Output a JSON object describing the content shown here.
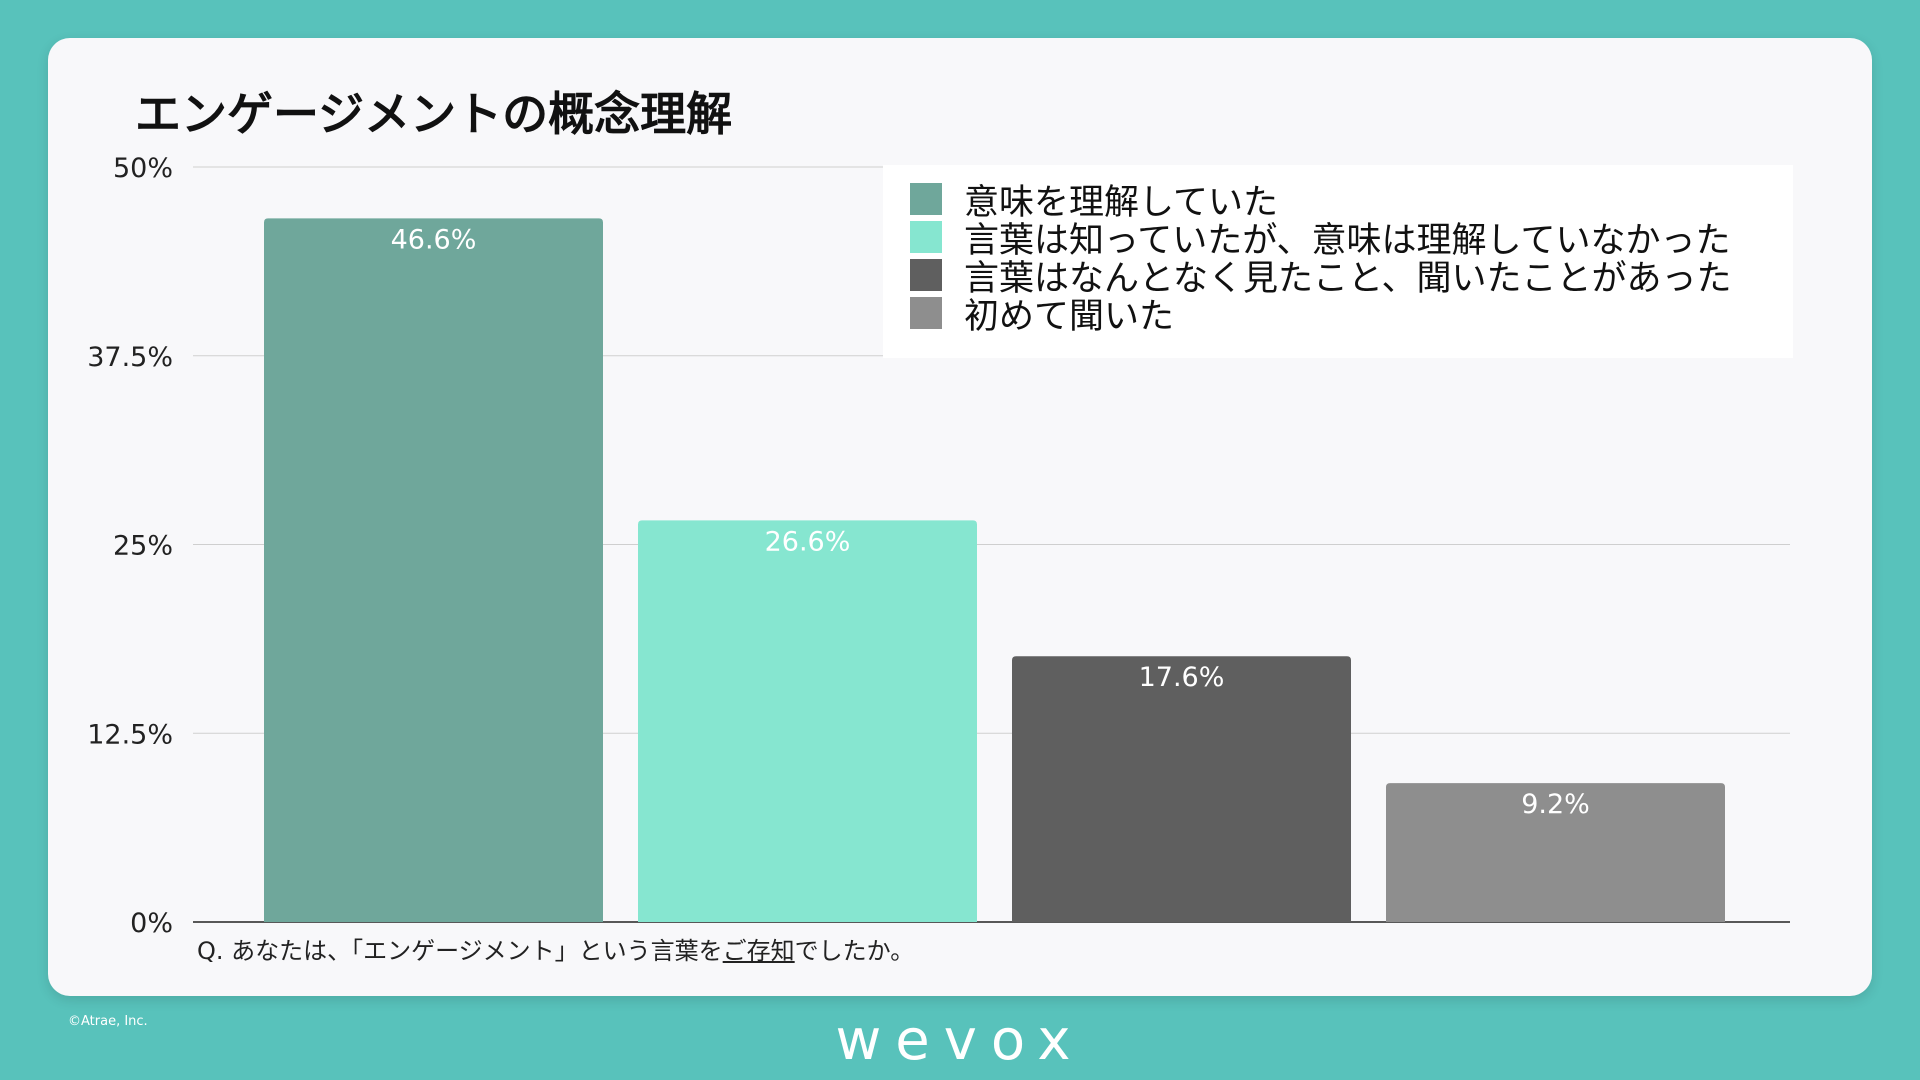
{
  "title": "エンゲージメントの概念理解",
  "question": {
    "prefix": "Q. あなたは、「エンゲージメント」という言葉を",
    "underlined": "ご存知",
    "suffix": "でしたか。"
  },
  "copyright": "©Atrae, Inc.",
  "brand": "wevox",
  "chart_data": {
    "type": "bar",
    "categories": [
      "意味を理解していた",
      "言葉は知っていたが、意味は理解していなかった",
      "言葉はなんとなく見たこと、聞いたことがあった",
      "初めて聞いた"
    ],
    "values": [
      46.6,
      26.6,
      17.6,
      9.2
    ],
    "data_labels": [
      "46.6%",
      "26.6%",
      "17.6%",
      "9.2%"
    ],
    "colors": [
      "#6fa79b",
      "#86e6d0",
      "#5f5f5f",
      "#8e8e8e"
    ],
    "ylim": [
      0,
      50
    ],
    "yticks": [
      0,
      12.5,
      25,
      37.5,
      50
    ],
    "ytick_labels": [
      "0%",
      "12.5%",
      "25%",
      "37.5%",
      "50%"
    ],
    "grid": true,
    "legend": "top-right"
  }
}
